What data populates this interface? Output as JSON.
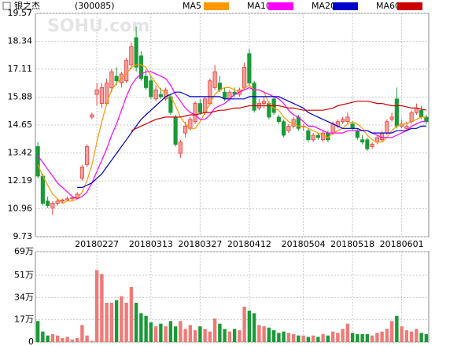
{
  "chart_data": {
    "type": "candlestick",
    "title": "银之杰",
    "subtitle": "(300085)",
    "watermark": "SOHU.com",
    "categories": [
      null,
      null,
      null,
      null,
      null,
      null,
      null,
      null,
      null,
      null,
      null,
      null,
      "20180227",
      null,
      null,
      null,
      null,
      null,
      null,
      null,
      null,
      null,
      null,
      "20180313",
      null,
      null,
      null,
      null,
      null,
      null,
      null,
      null,
      null,
      "20180327",
      null,
      null,
      null,
      null,
      null,
      null,
      null,
      null,
      null,
      "20180412",
      null,
      null,
      null,
      null,
      null,
      null,
      null,
      null,
      null,
      null,
      "20180504",
      null,
      null,
      null,
      null,
      null,
      null,
      null,
      null,
      null,
      "20180518",
      null,
      null,
      null,
      null,
      null,
      null,
      null,
      null,
      null,
      "20180601",
      null,
      null,
      null,
      null,
      null
    ],
    "ohlc": [
      [
        13.7,
        13.9,
        12.3,
        12.4
      ],
      [
        12.4,
        12.5,
        11.1,
        11.2
      ],
      [
        11.3,
        11.5,
        11.0,
        11.1
      ],
      [
        11.0,
        11.3,
        10.7,
        11.2
      ],
      [
        11.2,
        11.4,
        11.1,
        11.3
      ],
      [
        11.3,
        11.4,
        11.2,
        11.35
      ],
      [
        11.35,
        11.5,
        11.3,
        11.4
      ],
      [
        11.4,
        11.5,
        11.3,
        11.45
      ],
      [
        11.45,
        11.7,
        11.4,
        11.6
      ],
      [
        12.3,
        12.9,
        12.2,
        12.8
      ],
      [
        12.9,
        13.8,
        12.8,
        13.7
      ],
      [
        15.0,
        15.2,
        14.9,
        15.1
      ],
      [
        16.0,
        16.5,
        15.5,
        16.2
      ],
      [
        15.6,
        16.5,
        15.4,
        16.3
      ],
      [
        15.6,
        16.7,
        15.5,
        16.5
      ],
      [
        16.3,
        17.1,
        16.1,
        17.0
      ],
      [
        16.8,
        17.2,
        16.4,
        16.6
      ],
      [
        16.5,
        17.0,
        16.3,
        16.9
      ],
      [
        16.6,
        17.6,
        16.5,
        17.5
      ],
      [
        17.3,
        18.3,
        17.1,
        18.1
      ],
      [
        18.5,
        19.0,
        17.0,
        17.2
      ],
      [
        17.7,
        17.9,
        16.6,
        16.7
      ],
      [
        16.8,
        17.1,
        16.2,
        16.3
      ],
      [
        16.6,
        16.8,
        15.8,
        15.9
      ],
      [
        15.8,
        16.4,
        15.7,
        16.2
      ],
      [
        16.0,
        16.3,
        15.8,
        15.9
      ],
      [
        15.8,
        16.3,
        15.7,
        16.2
      ],
      [
        15.9,
        16.0,
        15.1,
        15.2
      ],
      [
        15.0,
        15.1,
        13.7,
        13.8
      ],
      [
        13.4,
        14.0,
        13.2,
        13.9
      ],
      [
        14.3,
        14.8,
        14.1,
        14.6
      ],
      [
        14.5,
        15.0,
        14.4,
        14.9
      ],
      [
        14.8,
        15.7,
        14.7,
        15.6
      ],
      [
        15.6,
        15.8,
        15.1,
        15.2
      ],
      [
        15.2,
        15.9,
        15.1,
        15.8
      ],
      [
        15.6,
        16.7,
        15.5,
        16.6
      ],
      [
        16.3,
        17.3,
        16.2,
        17.0
      ],
      [
        16.5,
        16.8,
        16.1,
        16.2
      ],
      [
        16.1,
        16.3,
        15.7,
        15.8
      ],
      [
        15.8,
        16.2,
        15.7,
        16.1
      ],
      [
        16.1,
        16.3,
        15.9,
        16.0
      ],
      [
        16.0,
        16.3,
        15.9,
        16.2
      ],
      [
        16.3,
        17.4,
        16.2,
        17.2
      ],
      [
        17.8,
        18.0,
        16.4,
        16.5
      ],
      [
        16.5,
        16.6,
        15.2,
        15.3
      ],
      [
        15.4,
        15.8,
        15.3,
        15.6
      ],
      [
        15.6,
        15.9,
        15.4,
        15.7
      ],
      [
        15.6,
        15.7,
        14.9,
        15.0
      ],
      [
        15.8,
        15.9,
        15.1,
        15.2
      ],
      [
        15.0,
        15.1,
        14.7,
        14.8
      ],
      [
        14.8,
        14.9,
        14.1,
        14.2
      ],
      [
        14.4,
        14.7,
        14.3,
        14.6
      ],
      [
        14.6,
        15.0,
        14.5,
        14.9
      ],
      [
        15.0,
        15.1,
        14.4,
        14.5
      ],
      [
        14.6,
        14.7,
        14.4,
        14.6
      ],
      [
        14.4,
        14.5,
        13.9,
        14.0
      ],
      [
        14.0,
        14.3,
        13.9,
        14.2
      ],
      [
        14.2,
        14.3,
        14.0,
        14.1
      ],
      [
        14.0,
        14.4,
        13.9,
        14.3
      ],
      [
        14.3,
        14.4,
        13.9,
        14.0
      ],
      [
        14.3,
        14.8,
        14.2,
        14.7
      ],
      [
        14.6,
        14.9,
        14.5,
        14.8
      ],
      [
        14.8,
        15.0,
        14.7,
        14.9
      ],
      [
        14.8,
        15.2,
        14.7,
        15.0
      ],
      [
        14.7,
        14.8,
        14.4,
        14.5
      ],
      [
        14.4,
        14.5,
        14.0,
        14.1
      ],
      [
        14.0,
        14.2,
        13.8,
        13.9
      ],
      [
        14.0,
        14.1,
        13.5,
        13.6
      ],
      [
        13.7,
        13.9,
        13.6,
        13.8
      ],
      [
        13.9,
        14.2,
        13.8,
        14.1
      ],
      [
        14.0,
        14.4,
        13.9,
        14.3
      ],
      [
        14.3,
        14.9,
        14.2,
        14.8
      ],
      [
        14.9,
        15.2,
        14.8,
        15.0
      ],
      [
        15.8,
        16.3,
        14.5,
        14.6
      ],
      [
        14.6,
        14.9,
        14.5,
        14.7
      ],
      [
        14.5,
        14.8,
        14.4,
        14.6
      ],
      [
        14.8,
        15.3,
        14.7,
        15.2
      ],
      [
        15.2,
        15.6,
        15.1,
        15.4
      ],
      [
        15.3,
        15.5,
        14.9,
        15.0
      ],
      [
        15.0,
        15.1,
        14.7,
        14.8
      ]
    ],
    "volume": [
      16,
      8,
      5,
      6,
      5,
      3,
      4,
      2,
      3,
      13,
      5,
      1,
      55,
      52,
      30,
      30,
      32,
      35,
      30,
      42,
      30,
      22,
      20,
      15,
      12,
      14,
      12,
      16,
      12,
      16,
      10,
      13,
      9,
      12,
      10,
      8,
      18,
      14,
      10,
      8,
      10,
      9,
      27,
      24,
      22,
      13,
      12,
      11,
      9,
      7,
      8,
      7,
      6,
      5,
      5,
      4,
      5,
      4,
      6,
      5,
      8,
      7,
      10,
      14,
      7,
      6,
      6,
      6,
      5,
      7,
      8,
      10,
      16,
      20,
      12,
      9,
      8,
      10,
      7,
      6
    ],
    "up_color": "#e8413c",
    "down_color": "#199a36",
    "series": [
      {
        "name": "MA5",
        "color": "#ff9900",
        "values": [
          12.9,
          12.4,
          12.0,
          11.6,
          11.4,
          11.2,
          11.3,
          11.3,
          11.4,
          11.7,
          12.2,
          12.9,
          13.9,
          14.8,
          15.6,
          16.2,
          16.5,
          16.7,
          16.9,
          17.2,
          17.3,
          17.3,
          17.2,
          16.8,
          16.5,
          16.2,
          16.1,
          15.9,
          15.5,
          15.0,
          14.7,
          14.5,
          14.5,
          14.8,
          15.2,
          15.6,
          16.0,
          16.2,
          16.3,
          16.3,
          16.2,
          16.1,
          16.3,
          16.4,
          16.2,
          16.2,
          16.1,
          15.6,
          15.4,
          15.3,
          15.0,
          14.8,
          14.7,
          14.6,
          14.6,
          14.5,
          14.4,
          14.3,
          14.2,
          14.1,
          14.3,
          14.4,
          14.5,
          14.7,
          14.8,
          14.7,
          14.5,
          14.2,
          14.0,
          13.9,
          13.9,
          14.1,
          14.4,
          14.6,
          14.7,
          14.7,
          14.8,
          14.9,
          15.0,
          15.0
        ]
      },
      {
        "name": "MA10",
        "color": "#ff00ff",
        "values": [
          13.3,
          13.0,
          12.7,
          12.4,
          12.1,
          11.9,
          11.7,
          11.5,
          11.4,
          11.5,
          11.7,
          12.1,
          12.6,
          13.1,
          13.6,
          14.2,
          14.7,
          15.3,
          15.9,
          16.4,
          16.7,
          16.9,
          17.0,
          17.0,
          16.9,
          16.8,
          16.7,
          16.4,
          16.0,
          15.7,
          15.4,
          15.2,
          15.1,
          14.9,
          14.9,
          15.1,
          15.4,
          15.5,
          15.6,
          15.8,
          16.0,
          16.1,
          16.2,
          16.3,
          16.2,
          16.2,
          16.1,
          16.0,
          15.9,
          15.8,
          15.6,
          15.3,
          15.1,
          15.0,
          14.8,
          14.6,
          14.6,
          14.5,
          14.4,
          14.3,
          14.3,
          14.3,
          14.3,
          14.4,
          14.4,
          14.4,
          14.4,
          14.4,
          14.3,
          14.2,
          14.1,
          14.1,
          14.1,
          14.2,
          14.3,
          14.4,
          14.6,
          14.7,
          14.8,
          14.8
        ]
      },
      {
        "name": "MA20",
        "color": "#0000cc",
        "values": [
          null,
          null,
          null,
          null,
          null,
          null,
          null,
          null,
          11.9,
          11.9,
          12.0,
          12.1,
          12.3,
          12.5,
          12.8,
          13.1,
          13.4,
          13.7,
          14.0,
          14.3,
          14.6,
          14.9,
          15.1,
          15.3,
          15.5,
          15.7,
          15.9,
          16.0,
          16.1,
          16.1,
          16.0,
          15.9,
          15.9,
          15.9,
          15.9,
          15.9,
          15.9,
          15.9,
          15.8,
          15.8,
          15.8,
          15.8,
          15.8,
          15.9,
          15.9,
          15.9,
          15.9,
          15.9,
          15.9,
          15.9,
          15.8,
          15.7,
          15.6,
          15.5,
          15.4,
          15.2,
          15.1,
          15.0,
          14.9,
          14.8,
          14.7,
          14.6,
          14.5,
          14.5,
          14.5,
          14.5,
          14.4,
          14.4,
          14.3,
          14.3,
          14.3,
          14.3,
          14.3,
          14.4,
          14.4,
          14.4,
          14.5,
          14.5,
          14.6,
          14.6
        ]
      },
      {
        "name": "MA60",
        "color": "#cc0000",
        "values": [
          null,
          null,
          null,
          null,
          null,
          null,
          null,
          null,
          null,
          null,
          null,
          null,
          null,
          null,
          null,
          null,
          null,
          null,
          null,
          14.4,
          14.5,
          14.6,
          14.7,
          14.8,
          14.9,
          14.95,
          15.0,
          15.0,
          15.0,
          15.0,
          15.05,
          15.1,
          15.1,
          15.15,
          15.2,
          15.2,
          15.25,
          15.3,
          15.3,
          15.35,
          15.4,
          15.4,
          15.45,
          15.5,
          15.5,
          15.5,
          15.5,
          15.5,
          15.5,
          15.5,
          15.45,
          15.4,
          15.4,
          15.35,
          15.3,
          15.3,
          15.3,
          15.3,
          15.3,
          15.35,
          15.4,
          15.5,
          15.55,
          15.6,
          15.65,
          15.7,
          15.7,
          15.7,
          15.65,
          15.6,
          15.6,
          15.55,
          15.5,
          15.5,
          15.5,
          15.45,
          15.4,
          15.4,
          15.35,
          15.3
        ]
      }
    ],
    "ylim": [
      9.73,
      19.57
    ],
    "yticks": [
      9.73,
      10.96,
      12.19,
      13.42,
      14.65,
      15.88,
      17.11,
      18.34,
      19.57
    ],
    "volume_ylim": [
      0,
      69
    ],
    "volume_ticks": [
      0,
      {
        "value": 17,
        "label": "17万"
      },
      {
        "value": 34,
        "label": "34万"
      },
      {
        "value": 51,
        "label": "51万"
      },
      {
        "value": 69,
        "label": "69万"
      }
    ],
    "grid": true
  }
}
